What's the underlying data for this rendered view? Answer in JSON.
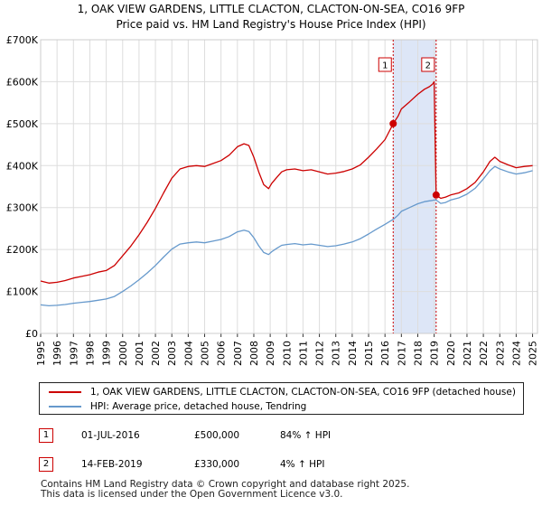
{
  "title": {
    "line1": "1, OAK VIEW GARDENS, LITTLE CLACTON, CLACTON-ON-SEA, CO16 9FP",
    "line2": "Price paid vs. HM Land Registry's House Price Index (HPI)"
  },
  "chart_data": {
    "type": "line",
    "title": "Price paid vs. HM Land Registry's House Price Index (HPI)",
    "xlabel": "",
    "ylabel": "",
    "xlim": [
      1995,
      2025.3
    ],
    "ylim": [
      0,
      700000
    ],
    "y_ticks": [
      {
        "value": 0,
        "label": "£0"
      },
      {
        "value": 100000,
        "label": "£100K"
      },
      {
        "value": 200000,
        "label": "£200K"
      },
      {
        "value": 300000,
        "label": "£300K"
      },
      {
        "value": 400000,
        "label": "£400K"
      },
      {
        "value": 500000,
        "label": "£500K"
      },
      {
        "value": 600000,
        "label": "£600K"
      },
      {
        "value": 700000,
        "label": "£700K"
      }
    ],
    "x_ticks": [
      "1995",
      "1996",
      "1997",
      "1998",
      "1999",
      "2000",
      "2001",
      "2002",
      "2003",
      "2004",
      "2005",
      "2006",
      "2007",
      "2008",
      "2009",
      "2010",
      "2011",
      "2012",
      "2013",
      "2014",
      "2015",
      "2016",
      "2017",
      "2018",
      "2019",
      "2020",
      "2021",
      "2022",
      "2023",
      "2024",
      "2025"
    ],
    "grid": true,
    "colors": {
      "property": "#cc0000",
      "hpi": "#6699cc",
      "shade": "#dde6f7",
      "vline": "#cc0000",
      "grid": "#dddddd"
    },
    "shaded_region": [
      2016.5,
      2019.12
    ],
    "series": [
      {
        "name": "1, OAK VIEW GARDENS, LITTLE CLACTON, CLACTON-ON-SEA, CO16 9FP (detached house)",
        "color": "#cc0000",
        "x": [
          1995.0,
          1995.5,
          1996.0,
          1996.5,
          1997.0,
          1997.5,
          1998.0,
          1998.5,
          1999.0,
          1999.5,
          2000.0,
          2000.5,
          2001.0,
          2001.5,
          2002.0,
          2002.5,
          2003.0,
          2003.5,
          2004.0,
          2004.5,
          2005.0,
          2005.5,
          2006.0,
          2006.5,
          2007.0,
          2007.4,
          2007.7,
          2008.0,
          2008.3,
          2008.6,
          2008.9,
          2009.1,
          2009.4,
          2009.7,
          2010.0,
          2010.5,
          2011.0,
          2011.5,
          2012.0,
          2012.5,
          2013.0,
          2013.5,
          2014.0,
          2014.5,
          2015.0,
          2015.5,
          2016.0,
          2016.5,
          2016.8,
          2017.0,
          2017.5,
          2018.0,
          2018.4,
          2018.7,
          2018.9,
          2019.0,
          2019.12,
          2019.4,
          2019.7,
          2020.0,
          2020.5,
          2021.0,
          2021.5,
          2022.0,
          2022.4,
          2022.7,
          2023.0,
          2023.5,
          2024.0,
          2024.5,
          2025.0
        ],
        "values": [
          125000,
          120000,
          122000,
          126000,
          132000,
          136000,
          140000,
          146000,
          150000,
          162000,
          185000,
          208000,
          235000,
          265000,
          298000,
          335000,
          370000,
          392000,
          398000,
          400000,
          398000,
          405000,
          412000,
          425000,
          445000,
          452000,
          448000,
          420000,
          385000,
          355000,
          345000,
          358000,
          372000,
          385000,
          390000,
          392000,
          388000,
          390000,
          385000,
          380000,
          382000,
          386000,
          392000,
          402000,
          420000,
          440000,
          462000,
          500000,
          518000,
          535000,
          552000,
          570000,
          582000,
          588000,
          594000,
          600000,
          330000,
          322000,
          325000,
          330000,
          335000,
          345000,
          360000,
          385000,
          410000,
          420000,
          410000,
          402000,
          395000,
          398000,
          400000
        ]
      },
      {
        "name": "HPI: Average price, detached house, Tendring",
        "color": "#6699cc",
        "x": [
          1995.0,
          1995.5,
          1996.0,
          1996.5,
          1997.0,
          1997.5,
          1998.0,
          1998.5,
          1999.0,
          1999.5,
          2000.0,
          2000.5,
          2001.0,
          2001.5,
          2002.0,
          2002.5,
          2003.0,
          2003.5,
          2004.0,
          2004.5,
          2005.0,
          2005.5,
          2006.0,
          2006.5,
          2007.0,
          2007.4,
          2007.7,
          2008.0,
          2008.3,
          2008.6,
          2008.9,
          2009.1,
          2009.4,
          2009.7,
          2010.0,
          2010.5,
          2011.0,
          2011.5,
          2012.0,
          2012.5,
          2013.0,
          2013.5,
          2014.0,
          2014.5,
          2015.0,
          2015.5,
          2016.0,
          2016.5,
          2016.8,
          2017.0,
          2017.5,
          2018.0,
          2018.4,
          2018.7,
          2018.9,
          2019.0,
          2019.12,
          2019.4,
          2019.7,
          2020.0,
          2020.5,
          2021.0,
          2021.5,
          2022.0,
          2022.4,
          2022.7,
          2023.0,
          2023.5,
          2024.0,
          2024.5,
          2025.0
        ],
        "values": [
          68000,
          66000,
          67000,
          69000,
          72000,
          74000,
          76000,
          79000,
          82000,
          88000,
          100000,
          113000,
          128000,
          144000,
          162000,
          182000,
          201000,
          213000,
          216000,
          218000,
          216000,
          220000,
          224000,
          231000,
          242000,
          246000,
          243000,
          228000,
          209000,
          193000,
          188000,
          195000,
          203000,
          210000,
          212000,
          214000,
          211000,
          213000,
          210000,
          207000,
          209000,
          213000,
          218000,
          226000,
          237000,
          249000,
          260000,
          272000,
          282000,
          291000,
          300000,
          309000,
          314000,
          316000,
          317000,
          318000,
          318000,
          310000,
          312000,
          318000,
          323000,
          332000,
          346000,
          368000,
          388000,
          398000,
          392000,
          385000,
          380000,
          383000,
          388000
        ]
      }
    ],
    "transactions": [
      {
        "marker": "1",
        "x": 2016.5,
        "value": 500000
      },
      {
        "marker": "2",
        "x": 2019.12,
        "value": 330000
      }
    ]
  },
  "legend": {
    "property_label": "1, OAK VIEW GARDENS, LITTLE CLACTON, CLACTON-ON-SEA, CO16 9FP (detached house)",
    "hpi_label": "HPI: Average price, detached house, Tendring"
  },
  "transactions": [
    {
      "marker": "1",
      "date": "01-JUL-2016",
      "price": "£500,000",
      "hpi": "84% ↑ HPI"
    },
    {
      "marker": "2",
      "date": "14-FEB-2019",
      "price": "£330,000",
      "hpi": "4% ↑ HPI"
    }
  ],
  "footer": {
    "line1": "Contains HM Land Registry data © Crown copyright and database right 2025.",
    "line2": "This data is licensed under the Open Government Licence v3.0."
  }
}
